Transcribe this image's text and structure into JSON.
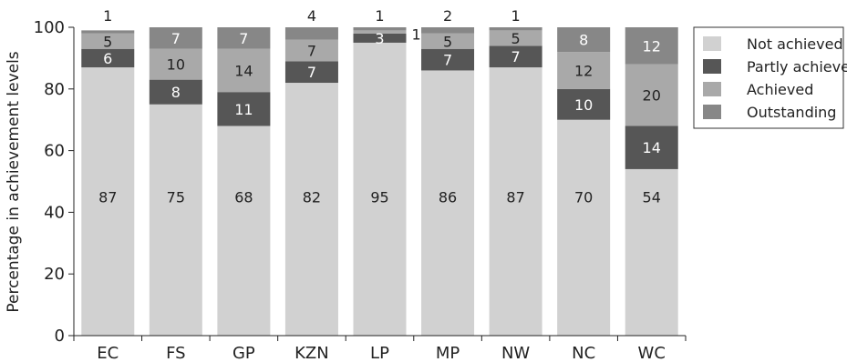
{
  "chart_data": {
    "type": "bar",
    "stacked": true,
    "orientation": "vertical",
    "title": "",
    "xlabel": "",
    "ylabel": "Percentage in achievement levels",
    "ylim": [
      0,
      100
    ],
    "yticks": [
      0,
      20,
      40,
      60,
      80,
      100
    ],
    "grid": false,
    "legend_position": "right",
    "categories": [
      "EC",
      "FS",
      "GP",
      "KZN",
      "LP",
      "MP",
      "NW",
      "NC",
      "WC"
    ],
    "series": [
      {
        "name": "Not achieved",
        "color": "#d1d1d1",
        "label_color": "#222222",
        "values": [
          87,
          75,
          68,
          82,
          95,
          86,
          87,
          70,
          54
        ]
      },
      {
        "name": "Partly achieved",
        "color": "#565656",
        "label_color": "#ffffff",
        "values": [
          6,
          8,
          11,
          7,
          3,
          7,
          7,
          10,
          14
        ]
      },
      {
        "name": "Achieved",
        "color": "#a9a9a9",
        "label_color": "#222222",
        "values": [
          5,
          10,
          14,
          7,
          1,
          5,
          5,
          12,
          20
        ]
      },
      {
        "name": "Outstanding",
        "color": "#878787",
        "label_color": "#ffffff",
        "values": [
          1,
          7,
          7,
          4,
          1,
          2,
          1,
          8,
          12
        ]
      }
    ]
  }
}
